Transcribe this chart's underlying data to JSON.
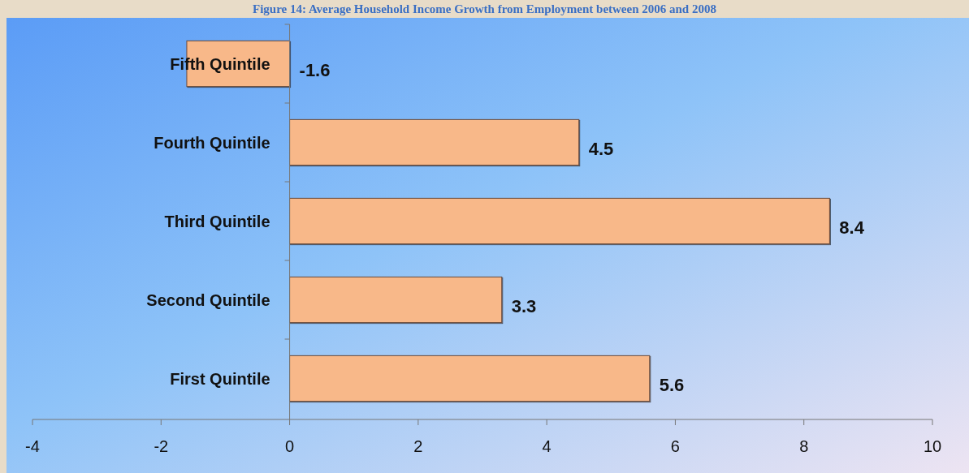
{
  "chart_data": {
    "type": "bar",
    "title": "Figure 14: Average Household Income Growth from Employment between 2006 and 2008",
    "orientation": "horizontal",
    "categories": [
      "Fifth Quintile",
      "Fourth Quintile",
      "Third Quintile",
      "Second Quintile",
      "First Quintile"
    ],
    "values": [
      -1.6,
      4.5,
      8.4,
      3.3,
      5.6
    ],
    "color": "#f8b889",
    "xlim": [
      -4,
      10
    ],
    "xticks": [
      -4,
      -2,
      0,
      2,
      4,
      6,
      8,
      10
    ],
    "data_labels": true,
    "grid": false
  }
}
